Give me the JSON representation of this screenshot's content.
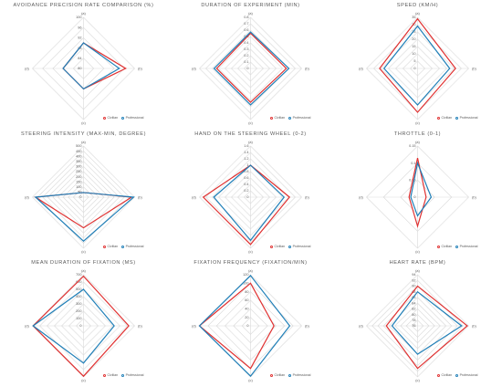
{
  "colors": {
    "civilian": "#e03131",
    "professional": "#1f7fb8",
    "grid": "#d9d9d9",
    "text": "#595959"
  },
  "legend": {
    "civilian": "Civilian",
    "professional": "Professional"
  },
  "chart_data": [
    {
      "type": "radar",
      "title": "AVOIDANCE PRECISION RATE COMPARISON (%)",
      "axes": [
        "(a)",
        "(b)",
        "(c)",
        "(d)"
      ],
      "ticks": [
        "80",
        "84",
        "88",
        "92",
        "96",
        "100"
      ],
      "range": [
        80,
        100
      ],
      "series": [
        {
          "name": "Civilian",
          "values": [
            90,
            96.5,
            88,
            88
          ]
        },
        {
          "name": "Professional",
          "values": [
            90,
            94,
            88,
            88
          ]
        }
      ]
    },
    {
      "type": "radar",
      "title": "DURATION OF EXPERIMENT (MIN)",
      "axes": [
        "(a)",
        "(b)",
        "(c)",
        "(d)"
      ],
      "ticks": [
        "0",
        "0.1",
        "0.2",
        "0.3",
        "0.4",
        "0.5",
        "0.6",
        "0.7",
        "0.8"
      ],
      "range": [
        0,
        0.8
      ],
      "series": [
        {
          "name": "Civilian",
          "values": [
            0.55,
            0.56,
            0.53,
            0.53
          ]
        },
        {
          "name": "Professional",
          "values": [
            0.57,
            0.6,
            0.57,
            0.57
          ]
        }
      ]
    },
    {
      "type": "radar",
      "title": "SPEED (KM/H)",
      "axes": [
        "(a)",
        "(b)",
        "(c)",
        "(d)"
      ],
      "ticks": [
        "0",
        "5",
        "10",
        "15",
        "20",
        "25",
        "30",
        "35"
      ],
      "range": [
        0,
        35
      ],
      "series": [
        {
          "name": "Civilian",
          "values": [
            34,
            26,
            30,
            26
          ]
        },
        {
          "name": "Professional",
          "values": [
            29,
            22,
            25,
            23
          ]
        }
      ]
    },
    {
      "type": "radar",
      "title": "STEERING INTENSITY (MAX-MIN, DEGREE)",
      "axes": [
        "(a)",
        "(b)",
        "(c)",
        "(d)"
      ],
      "ticks": [
        "0",
        "50",
        "100",
        "150",
        "200",
        "250",
        "300",
        "350",
        "400",
        "450",
        "500"
      ],
      "range": [
        0,
        500
      ],
      "series": [
        {
          "name": "Civilian",
          "values": [
            45,
            470,
            300,
            470
          ]
        },
        {
          "name": "Professional",
          "values": [
            45,
            490,
            430,
            470
          ]
        }
      ]
    },
    {
      "type": "radar",
      "title": "HAND ON THE STEERING WHEEL (0-2)",
      "axes": [
        "(a)",
        "(b)",
        "(c)",
        "(d)"
      ],
      "ticks": [
        "0",
        "0.2",
        "0.4",
        "0.6",
        "0.8",
        "1",
        "1.2",
        "1.4",
        "1.6"
      ],
      "range": [
        0,
        1.6
      ],
      "series": [
        {
          "name": "Civilian",
          "values": [
            1,
            1.22,
            1.48,
            1.48
          ]
        },
        {
          "name": "Professional",
          "values": [
            1,
            1.05,
            1.35,
            1.15
          ]
        }
      ]
    },
    {
      "type": "radar",
      "title": "THROTTLE (0-1)",
      "axes": [
        "(a)",
        "(b)",
        "(c)",
        "(d)"
      ],
      "ticks": [
        "0",
        "0.05",
        "0.1",
        "0.15"
      ],
      "range": [
        0,
        0.15
      ],
      "series": [
        {
          "name": "Civilian",
          "values": [
            0.115,
            0.025,
            0.085,
            0.025
          ]
        },
        {
          "name": "Professional",
          "values": [
            0.1,
            0.04,
            0.055,
            0.02
          ]
        }
      ]
    },
    {
      "type": "radar",
      "title": "MEAN DURATION OF FIXATION (MS)",
      "axes": [
        "(a)",
        "(b)",
        "(c)",
        "(d)"
      ],
      "ticks": [
        "0",
        "100",
        "200",
        "300",
        "400",
        "500",
        "600",
        "700"
      ],
      "range": [
        0,
        700
      ],
      "series": [
        {
          "name": "Civilian",
          "values": [
            680,
            620,
            690,
            690
          ]
        },
        {
          "name": "Professional",
          "values": [
            500,
            420,
            510,
            690
          ]
        }
      ]
    },
    {
      "type": "radar",
      "title": "FIXATION FREQUENCY (FIXATION/MIN)",
      "axes": [
        "(a)",
        "(b)",
        "(c)",
        "(d)"
      ],
      "ticks": [
        "0",
        "20",
        "40",
        "60",
        "80",
        "100",
        "120"
      ],
      "range": [
        0,
        120
      ],
      "series": [
        {
          "name": "Civilian",
          "values": [
            100,
            55,
            100,
            120
          ]
        },
        {
          "name": "Professional",
          "values": [
            118,
            92,
            118,
            120
          ]
        }
      ]
    },
    {
      "type": "radar",
      "title": "HEART RATE (BPM)",
      "axes": [
        "(a)",
        "(b)",
        "(c)",
        "(d)"
      ],
      "ticks": [
        "76",
        "78",
        "80",
        "82",
        "84",
        "86",
        "88",
        "90",
        "92",
        "94"
      ],
      "range": [
        76,
        94
      ],
      "series": [
        {
          "name": "Civilian",
          "values": [
            90,
            93.5,
            91,
            87
          ]
        },
        {
          "name": "Professional",
          "values": [
            88,
            91.5,
            86,
            85
          ]
        }
      ]
    }
  ]
}
